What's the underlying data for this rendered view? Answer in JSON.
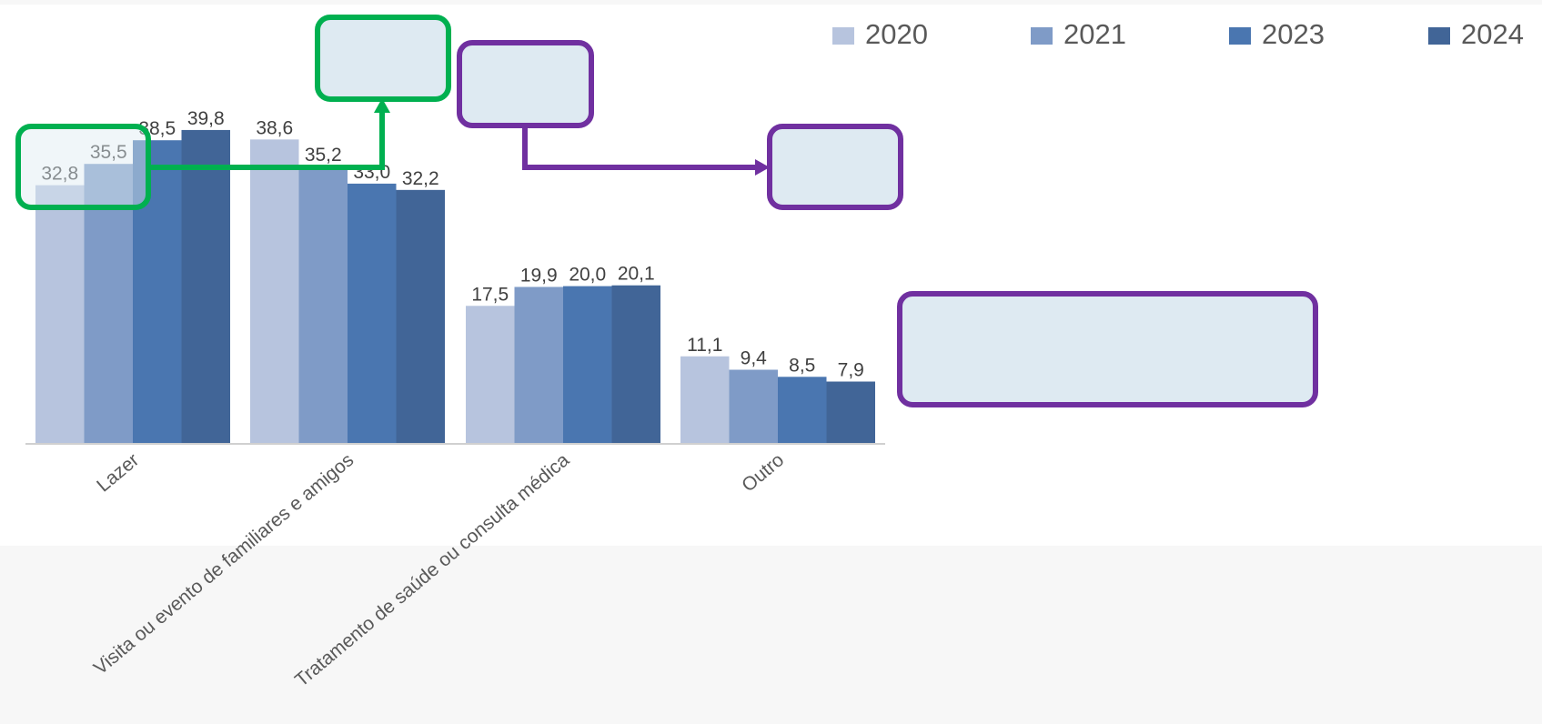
{
  "chart_data": {
    "type": "bar",
    "categories": [
      "Lazer",
      "Visita ou evento de familiares e amigos",
      "Tratamento de saúde ou consulta médica",
      "Outro"
    ],
    "series": [
      {
        "name": "2020",
        "values": [
          32.8,
          38.6,
          17.5,
          11.1
        ],
        "labels": [
          "32,8",
          "38,6",
          "17,5",
          "11,1"
        ],
        "color": "#b7c4de"
      },
      {
        "name": "2021",
        "values": [
          35.5,
          35.2,
          19.9,
          9.4
        ],
        "labels": [
          "35,5",
          "35,2",
          "19,9",
          "9,4"
        ],
        "color": "#7f9bc7"
      },
      {
        "name": "2023",
        "values": [
          38.5,
          33.0,
          20.0,
          8.5
        ],
        "labels": [
          "38,5",
          "33,0",
          "20,0",
          "8,5"
        ],
        "color": "#4a76b0"
      },
      {
        "name": "2024",
        "values": [
          39.8,
          32.2,
          20.1,
          7.9
        ],
        "labels": [
          "39,8",
          "32,2",
          "20,1",
          "7,9"
        ],
        "color": "#416597"
      }
    ],
    "ylim": [
      0,
      40
    ],
    "legend_position": "top-right",
    "grid": false
  },
  "annotations": {
    "green_color": "#00b050",
    "purple_color": "#7030a0",
    "box_fill": "#deeaf2"
  }
}
